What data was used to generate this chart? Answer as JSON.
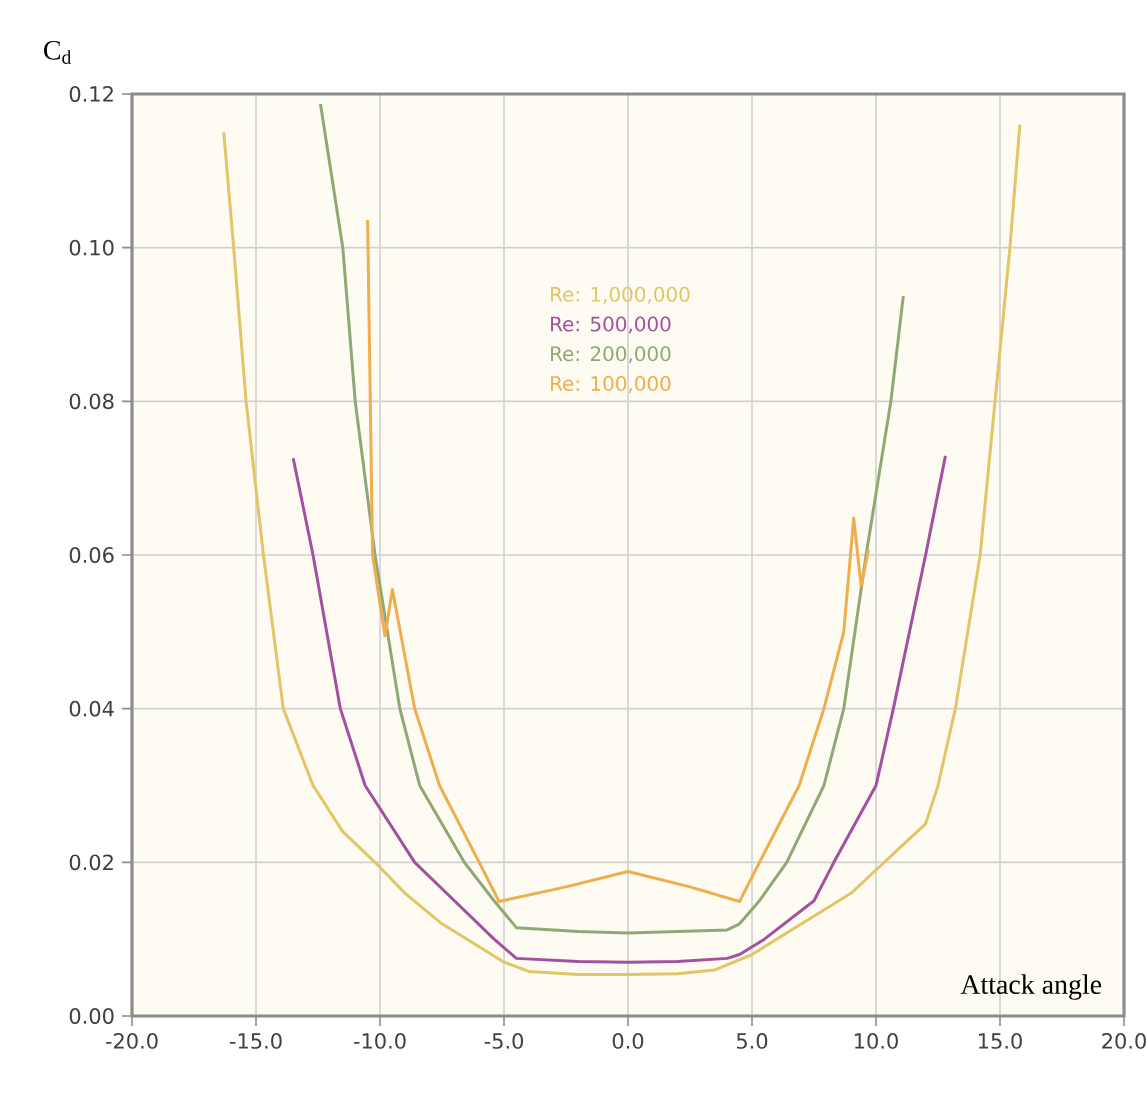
{
  "chart_data": {
    "type": "line",
    "xlabel": "Attack angle",
    "ylabel": "C$_{d}$",
    "xlim": [
      -20,
      20
    ],
    "ylim": [
      0,
      0.12
    ],
    "xticks": [
      {
        "value": -20,
        "label": "-20.0"
      },
      {
        "value": -15,
        "label": "-15.0"
      },
      {
        "value": -10,
        "label": "-10.0"
      },
      {
        "value": -5,
        "label": "-5.0"
      },
      {
        "value": 0,
        "label": "0.0"
      },
      {
        "value": 5,
        "label": "5.0"
      },
      {
        "value": 10,
        "label": "10.0"
      },
      {
        "value": 15,
        "label": "15.0"
      },
      {
        "value": 20,
        "label": "20.0"
      }
    ],
    "yticks": [
      {
        "value": 0,
        "label": "0.00"
      },
      {
        "value": 0.02,
        "label": "0.02"
      },
      {
        "value": 0.04,
        "label": "0.04"
      },
      {
        "value": 0.06,
        "label": "0.06"
      },
      {
        "value": 0.08,
        "label": "0.08"
      },
      {
        "value": 0.1,
        "label": "0.10"
      },
      {
        "value": 0.12,
        "label": "0.12"
      }
    ],
    "grid": true,
    "legend": "top",
    "marker": "none",
    "line_style": "solid",
    "series": [
      {
        "name": "Re: 1,000,000",
        "color": "#e3c567",
        "x": [
          -16.3,
          -15.9,
          -15.4,
          -14.7,
          -13.9,
          -12.7,
          -11.5,
          -10.2,
          -9,
          -7.5,
          -6,
          -5,
          -4,
          -2,
          0,
          2,
          3.5,
          5,
          6,
          7,
          8,
          9,
          10,
          11,
          12,
          12.5,
          13.2,
          14.2,
          14.8,
          15.4,
          15.8
        ],
        "values": [
          0.115,
          0.1,
          0.08,
          0.06,
          0.04,
          0.03,
          0.024,
          0.02,
          0.016,
          0.012,
          0.009,
          0.007,
          0.0058,
          0.0054,
          0.0054,
          0.0055,
          0.006,
          0.008,
          0.01,
          0.012,
          0.014,
          0.016,
          0.019,
          0.022,
          0.025,
          0.03,
          0.04,
          0.06,
          0.08,
          0.1,
          0.116
        ]
      },
      {
        "name": "Re: 500,000",
        "color": "#a350a0",
        "x": [
          -13.5,
          -12.7,
          -11.6,
          -10.6,
          -8.6,
          -7,
          -5.4,
          -4.5,
          -2,
          0,
          2,
          4,
          4.5,
          5.5,
          7.5,
          8.3,
          10,
          10.7,
          12,
          12.8
        ],
        "values": [
          0.0726,
          0.06,
          0.04,
          0.03,
          0.02,
          0.015,
          0.01,
          0.0075,
          0.0071,
          0.007,
          0.0071,
          0.0075,
          0.008,
          0.01,
          0.015,
          0.02,
          0.03,
          0.04,
          0.06,
          0.0729
        ]
      },
      {
        "name": "Re: 200,000",
        "color": "#8fa876",
        "x": [
          -12.4,
          -11.5,
          -11,
          -10.2,
          -9.2,
          -8.4,
          -6.6,
          -5.4,
          -4.5,
          -2,
          0,
          2,
          4,
          4.5,
          5.3,
          6.4,
          7.9,
          8.7,
          9.6,
          10.6,
          11.1
        ],
        "values": [
          0.1187,
          0.1,
          0.08,
          0.06,
          0.04,
          0.03,
          0.02,
          0.015,
          0.0115,
          0.011,
          0.0108,
          0.011,
          0.0112,
          0.012,
          0.015,
          0.02,
          0.03,
          0.04,
          0.06,
          0.08,
          0.0937
        ]
      },
      {
        "name": "Re: 100,000",
        "color": "#f0ad4e",
        "x": [
          -10.5,
          -10.3,
          -9.8,
          -9.5,
          -8.6,
          -7.6,
          -6,
          -5.2,
          -2.5,
          0,
          2.5,
          4.5,
          5.3,
          6.9,
          7.9,
          8.7,
          9.1,
          9.4,
          9.7
        ],
        "values": [
          0.1036,
          0.06,
          0.0495,
          0.0555,
          0.04,
          0.03,
          0.02,
          0.0149,
          0.0168,
          0.0188,
          0.0168,
          0.0149,
          0.02,
          0.03,
          0.04,
          0.05,
          0.0648,
          0.056,
          0.0607
        ]
      }
    ]
  }
}
